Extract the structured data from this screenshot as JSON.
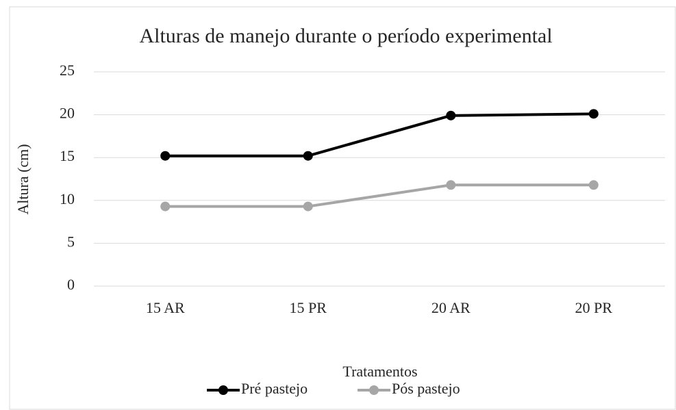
{
  "chart_data": {
    "type": "line",
    "title": "Alturas de manejo durante o período experimental",
    "x_label": "Tratamentos",
    "y_label": "Altura (cm)",
    "categories": [
      "15 AR",
      "15 PR",
      "20 AR",
      "20 PR"
    ],
    "series": [
      {
        "name": "Pré pastejo",
        "color": "#000000",
        "values": [
          15.2,
          15.2,
          19.9,
          20.1
        ]
      },
      {
        "name": "Pós pastejo",
        "color": "#a6a6a6",
        "values": [
          9.3,
          9.3,
          11.8,
          11.8
        ]
      }
    ],
    "ylim": [
      0,
      25
    ],
    "yticks": [
      0,
      5,
      10,
      15,
      20,
      25
    ],
    "grid": true,
    "legend": "bottom"
  }
}
